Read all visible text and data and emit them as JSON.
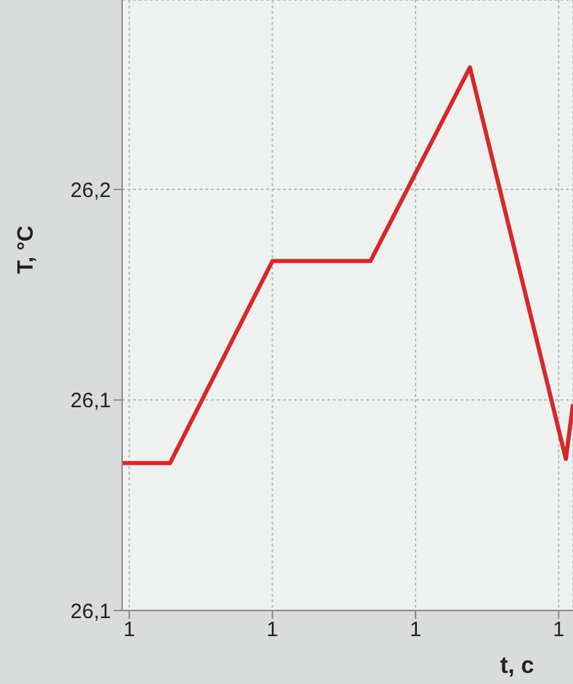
{
  "chart_data": {
    "type": "line",
    "xlabel": "t, c",
    "ylabel": "T, °C",
    "x": [
      0.79,
      0.857,
      1.0,
      1.137,
      1.276,
      1.41,
      1.42
    ],
    "series": [
      {
        "color": "#d42a2a",
        "values": [
          26.085,
          26.085,
          26.133,
          26.133,
          26.179,
          26.086,
          26.099
        ]
      }
    ],
    "xlim": [
      0.79,
      1.42
    ],
    "xticks": [
      {
        "value": 0.8,
        "label": "1"
      },
      {
        "value": 1.0,
        "label": "1"
      },
      {
        "value": 1.2,
        "label": "1"
      },
      {
        "value": 1.4,
        "label": "1"
      }
    ],
    "ylim": [
      26.05,
      26.195
    ],
    "yticks": [
      {
        "value": 26.05,
        "label": "26,1"
      },
      {
        "value": 26.1,
        "label": "26,1"
      },
      {
        "value": 26.15,
        "label": "26,2"
      }
    ],
    "grid": true,
    "legend": false,
    "marker": "none",
    "line_style": "solid"
  }
}
